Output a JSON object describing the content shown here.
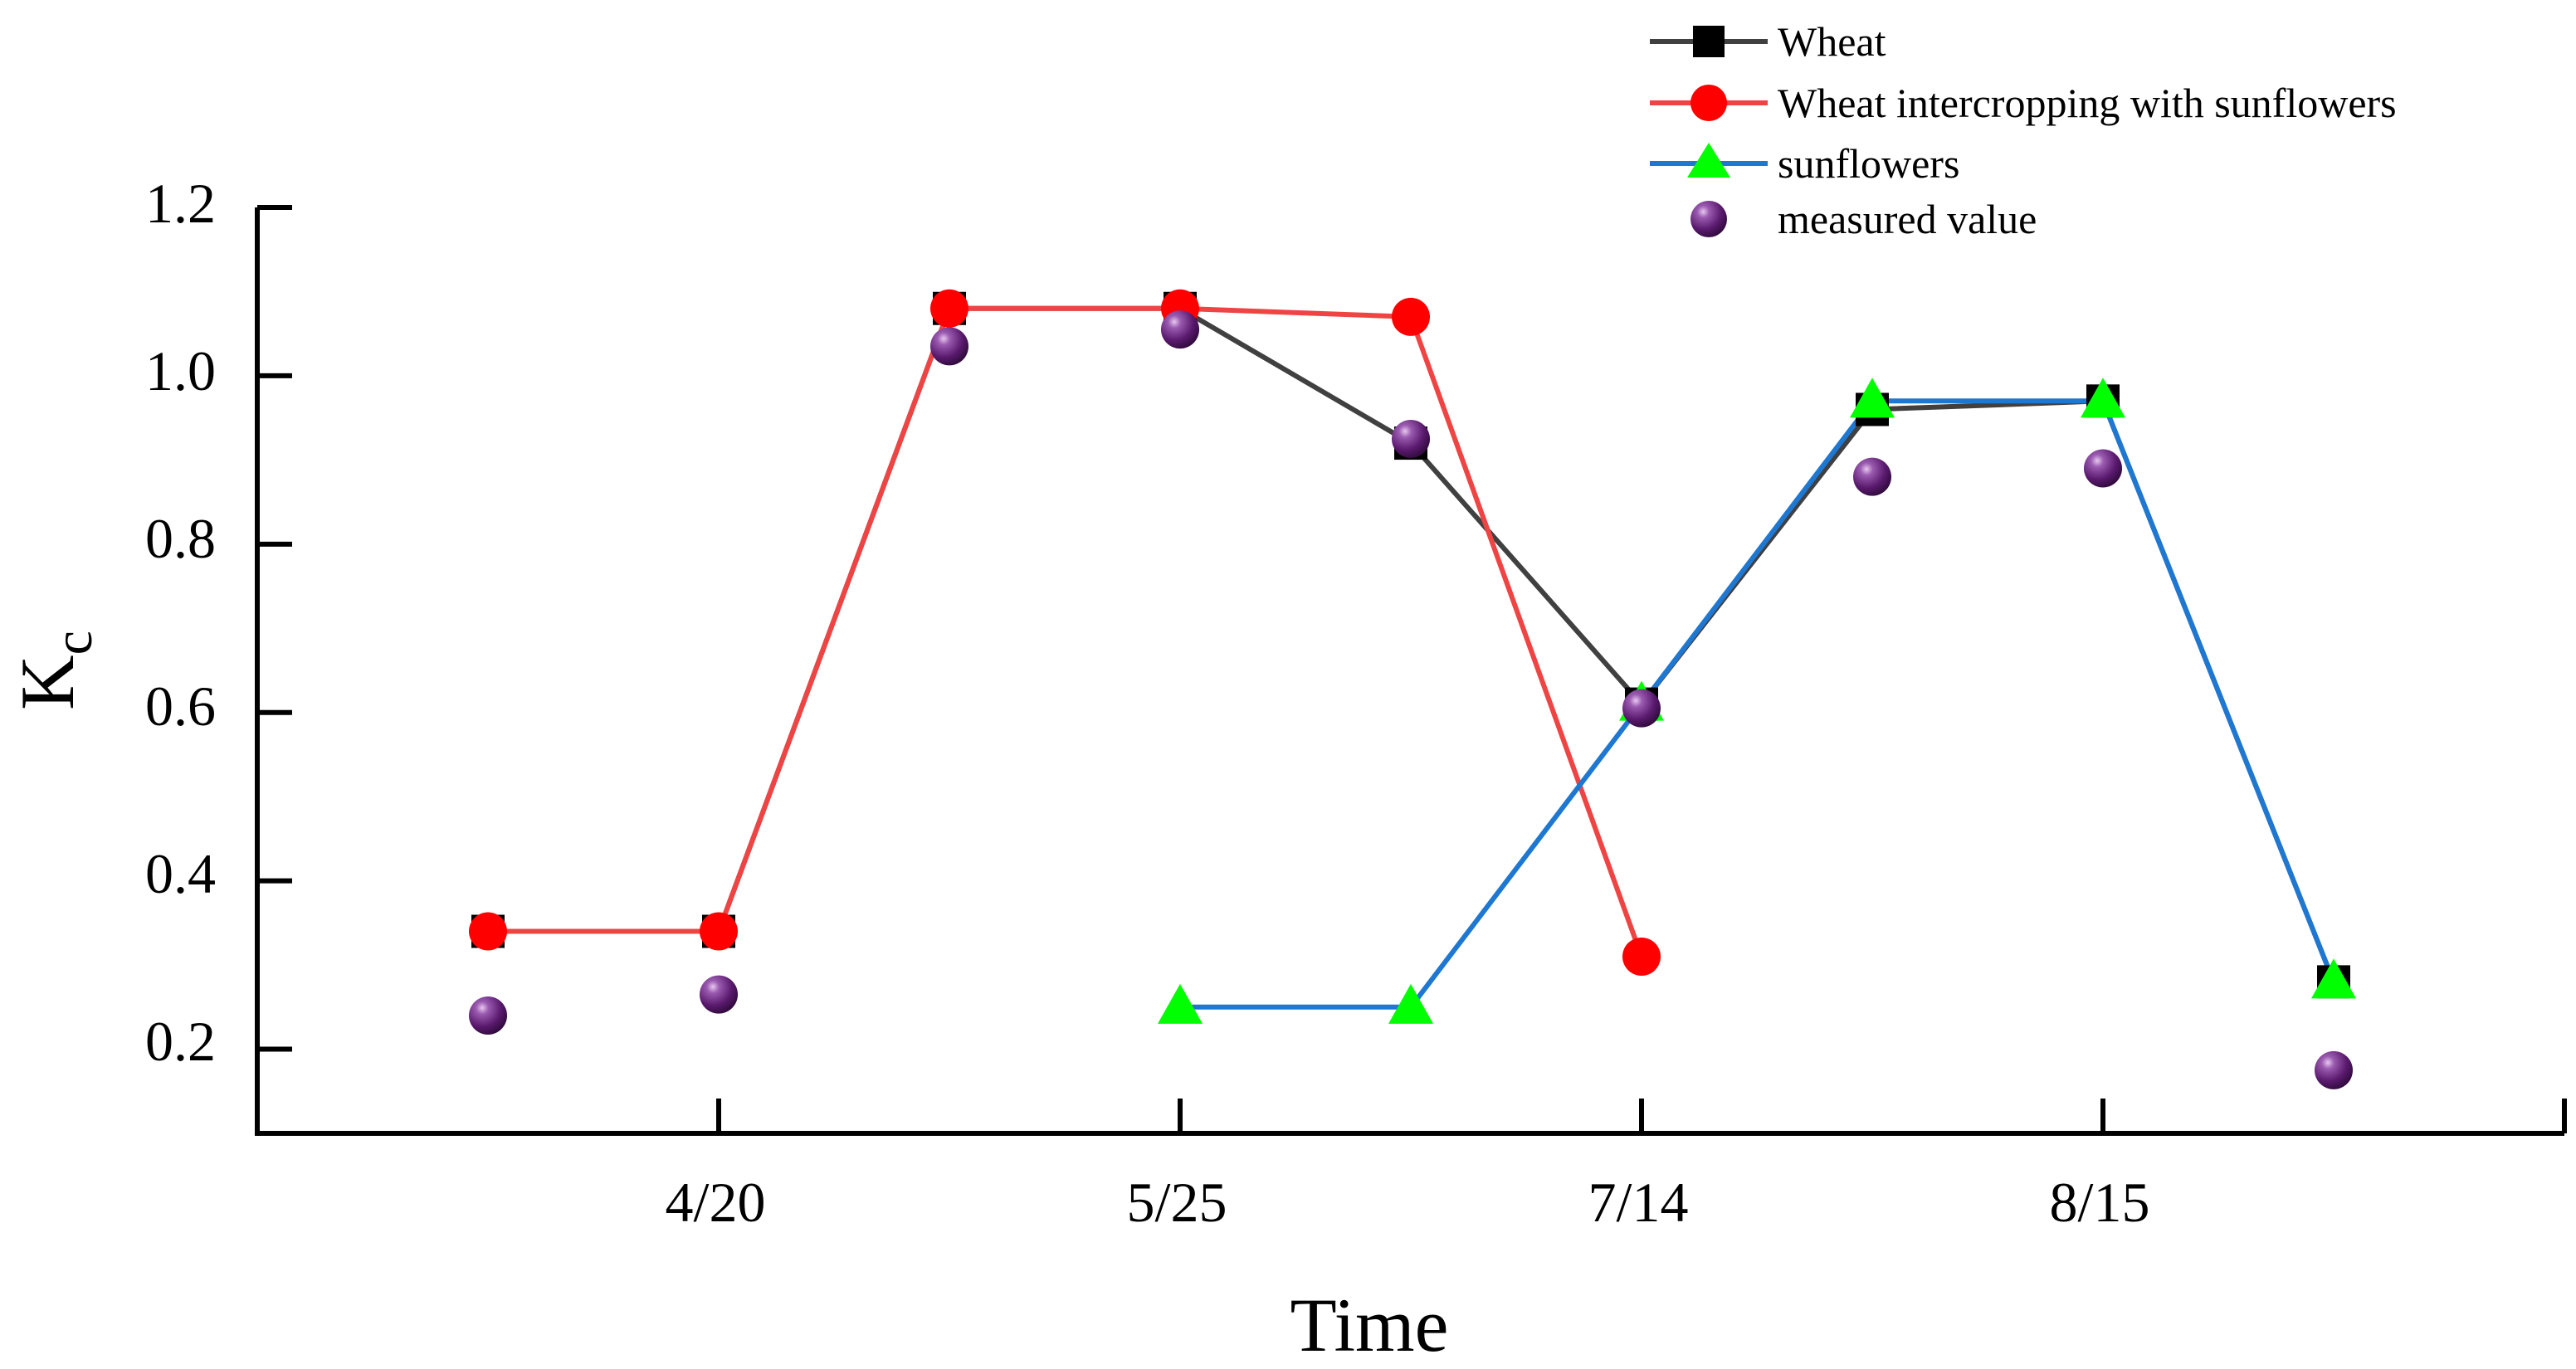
{
  "chart_data": {
    "type": "line",
    "xlabel": "Time",
    "ylabel_main": "K",
    "ylabel_sub": "c",
    "ylim": [
      0.1,
      1.2
    ],
    "yticks": [
      0.2,
      0.4,
      0.6,
      0.8,
      1.0,
      1.2
    ],
    "ytick_labels": [
      "0.2",
      "0.4",
      "0.6",
      "0.8",
      "1.0",
      "1.2"
    ],
    "xlim": [
      0,
      10
    ],
    "xticks": [
      2,
      4,
      6,
      8
    ],
    "xtick_labels": [
      "4/20",
      "5/25",
      "7/14",
      "8/15"
    ],
    "legend_position": "top-right",
    "colors": {
      "wheat": "#000000",
      "wheat_line": "#404040",
      "intercrop": "#ff0000",
      "intercrop_line": "#ef4444",
      "sunflowers": "#00ff00",
      "sunflowers_line": "#1e78d2",
      "measured": "#5a1a6e"
    },
    "series": [
      {
        "name": "Wheat",
        "key": "wheat",
        "marker": "square",
        "x": [
          1,
          2,
          3,
          4,
          5,
          6,
          7,
          8,
          9
        ],
        "y": [
          0.34,
          0.34,
          1.08,
          1.08,
          0.92,
          0.61,
          0.96,
          0.97,
          0.28
        ]
      },
      {
        "name": "Wheat intercropping with sunflowers",
        "key": "intercrop",
        "marker": "circle",
        "x": [
          1,
          2,
          3,
          4,
          5,
          6
        ],
        "y": [
          0.34,
          0.34,
          1.08,
          1.08,
          1.07,
          0.31
        ]
      },
      {
        "name": "sunflowers",
        "key": "sunflowers",
        "marker": "triangle",
        "x": [
          4,
          5,
          6,
          7,
          8,
          9
        ],
        "y": [
          0.25,
          0.25,
          0.61,
          0.97,
          0.97,
          0.28
        ]
      },
      {
        "name": "measured value",
        "key": "measured",
        "marker": "sphere",
        "x": [
          1,
          2,
          3,
          4,
          5,
          6,
          7,
          8,
          9
        ],
        "y": [
          0.24,
          0.265,
          1.035,
          1.055,
          0.925,
          0.605,
          0.88,
          0.89,
          0.175
        ]
      }
    ]
  }
}
